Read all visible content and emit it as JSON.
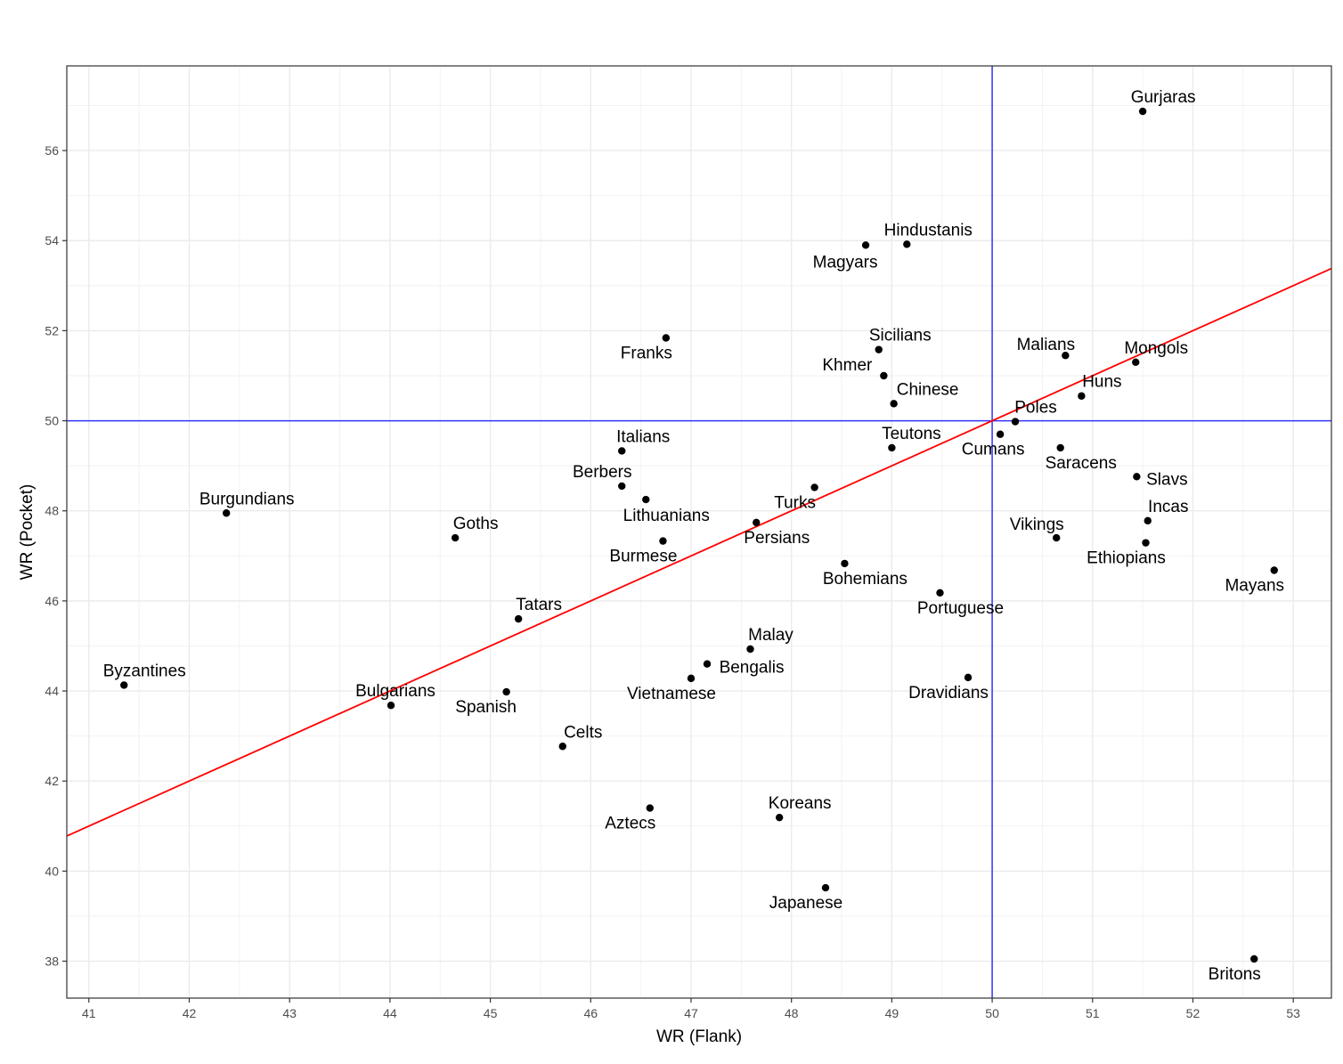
{
  "chart_data": {
    "type": "scatter",
    "title": "",
    "xlabel": "WR (Flank)",
    "ylabel": "WR (Pocket)",
    "xlim": [
      40.78,
      53.38
    ],
    "ylim": [
      37.18,
      57.88
    ],
    "x_ticks": [
      41,
      42,
      43,
      44,
      45,
      46,
      47,
      48,
      49,
      50,
      51,
      52,
      53
    ],
    "y_ticks": [
      38,
      40,
      42,
      44,
      46,
      48,
      50,
      52,
      54,
      56
    ],
    "grid": true,
    "reference_lines": {
      "vertical_x": 50,
      "horizontal_y": 50,
      "color": "#3333ff"
    },
    "trend_line": {
      "color": "#ff0000",
      "slope": 1.0,
      "intercept": 0.0
    },
    "point_color": "#000000",
    "points": [
      {
        "label": "Gurjaras",
        "x": 51.5,
        "y": 56.87
      },
      {
        "label": "Hindustanis",
        "x": 49.15,
        "y": 53.92
      },
      {
        "label": "Magyars",
        "x": 48.74,
        "y": 53.9
      },
      {
        "label": "Franks",
        "x": 46.75,
        "y": 51.84
      },
      {
        "label": "Sicilians",
        "x": 48.87,
        "y": 51.58
      },
      {
        "label": "Khmer",
        "x": 48.92,
        "y": 51.0
      },
      {
        "label": "Malians",
        "x": 50.73,
        "y": 51.45
      },
      {
        "label": "Mongols",
        "x": 51.43,
        "y": 51.3
      },
      {
        "label": "Chinese",
        "x": 49.02,
        "y": 50.38
      },
      {
        "label": "Huns",
        "x": 50.89,
        "y": 50.55
      },
      {
        "label": "Poles",
        "x": 50.23,
        "y": 49.98
      },
      {
        "label": "Teutons",
        "x": 49.0,
        "y": 49.4
      },
      {
        "label": "Cumans",
        "x": 50.08,
        "y": 49.7
      },
      {
        "label": "Saracens",
        "x": 50.68,
        "y": 49.4
      },
      {
        "label": "Italians",
        "x": 46.31,
        "y": 49.33
      },
      {
        "label": "Berbers",
        "x": 46.31,
        "y": 48.55
      },
      {
        "label": "Lithuanians",
        "x": 46.55,
        "y": 48.25
      },
      {
        "label": "Slavs",
        "x": 51.44,
        "y": 48.76
      },
      {
        "label": "Turks",
        "x": 48.23,
        "y": 48.52
      },
      {
        "label": "Persians",
        "x": 47.65,
        "y": 47.74
      },
      {
        "label": "Incas",
        "x": 51.55,
        "y": 47.78
      },
      {
        "label": "Vikings",
        "x": 50.64,
        "y": 47.4
      },
      {
        "label": "Ethiopians",
        "x": 51.53,
        "y": 47.29
      },
      {
        "label": "Burgundians",
        "x": 42.37,
        "y": 47.95
      },
      {
        "label": "Goths",
        "x": 44.65,
        "y": 47.4
      },
      {
        "label": "Burmese",
        "x": 46.72,
        "y": 47.33
      },
      {
        "label": "Bohemians",
        "x": 48.53,
        "y": 46.83
      },
      {
        "label": "Mayans",
        "x": 52.81,
        "y": 46.68
      },
      {
        "label": "Portuguese",
        "x": 49.48,
        "y": 46.18
      },
      {
        "label": "Tatars",
        "x": 45.28,
        "y": 45.6
      },
      {
        "label": "Malay",
        "x": 47.59,
        "y": 44.93
      },
      {
        "label": "Bengalis",
        "x": 47.16,
        "y": 44.6
      },
      {
        "label": "Vietnamese",
        "x": 47.0,
        "y": 44.28
      },
      {
        "label": "Dravidians",
        "x": 49.76,
        "y": 44.3
      },
      {
        "label": "Byzantines",
        "x": 41.35,
        "y": 44.13
      },
      {
        "label": "Bulgarians",
        "x": 44.01,
        "y": 43.68
      },
      {
        "label": "Spanish",
        "x": 45.16,
        "y": 43.98
      },
      {
        "label": "Celts",
        "x": 45.72,
        "y": 42.77
      },
      {
        "label": "Aztecs",
        "x": 46.59,
        "y": 41.4
      },
      {
        "label": "Koreans",
        "x": 47.88,
        "y": 41.19
      },
      {
        "label": "Japanese",
        "x": 48.34,
        "y": 39.63
      },
      {
        "label": "Britons",
        "x": 52.61,
        "y": 38.05
      }
    ]
  }
}
